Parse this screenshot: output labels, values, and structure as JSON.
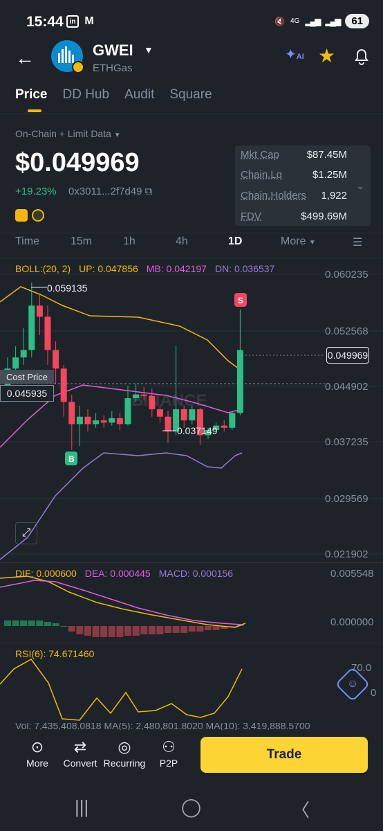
{
  "status_bar": {
    "time": "15:44",
    "net_label": "4G",
    "battery": "61"
  },
  "header": {
    "coin_name": "GWEI",
    "coin_sub": "ETHGas",
    "ai_label": "AI"
  },
  "tabs": [
    "Price",
    "DD Hub",
    "Audit",
    "Square"
  ],
  "source_label": "On-Chain + Limit Data",
  "price": "$0.049969",
  "change": "+19.23%",
  "address": "0x3011...2f7d49",
  "stats": [
    {
      "label": "Mkt Cap",
      "value": "$87.45M"
    },
    {
      "label": "Chain.Lq",
      "value": "$1.25M"
    },
    {
      "label": "Chain.Holders",
      "value": "1,922"
    },
    {
      "label": "FDV",
      "value": "$499.69M"
    }
  ],
  "timeframes": [
    "Time",
    "15m",
    "1h",
    "4h",
    "1D",
    "More"
  ],
  "boll": {
    "label": "BOLL:(20, 2)",
    "up": "UP: 0.047856",
    "mb": "MB: 0.042197",
    "dn": "DN: 0.036537"
  },
  "price_axis": [
    "0.060235",
    "0.052568",
    "0.044902",
    "0.037235",
    "0.029569",
    "0.021902"
  ],
  "current_price_tag": "0.049969",
  "high_label": "0.059135",
  "low_label": "0.037149",
  "cost_price_label": "Cost Price",
  "cost_price_value": "0.045935",
  "watermark": "BINANCE",
  "buy_marker": "B",
  "sell_marker": "S",
  "macd": {
    "dif": "DIF: 0.000600",
    "dea": "DEA: 0.000445",
    "macd": "MACD: 0.000156",
    "axis_top": "0.005548",
    "axis_zero": "0.000000"
  },
  "rsi": {
    "label": "RSI(6): 74.671460",
    "axis_70": "70.0",
    "axis_0": "0"
  },
  "vol_partial": "Vol: 7,435,408.0818    MA(5): 2,480,801.8020    MA(10): 3,419,888.5700",
  "bottom_bar": {
    "more": "More",
    "convert": "Convert",
    "recurring": "Recurring",
    "p2p": "P2P",
    "trade": "Trade"
  },
  "colors": {
    "up": "#2ebd85",
    "down": "#f6465d",
    "accent": "#f0b90b",
    "boll_mb": "#e05ce0",
    "boll_dn": "#9b7ad8"
  },
  "chart_data": {
    "type": "candlestick",
    "candles": [
      [
        0.045,
        0.0475,
        0.0435,
        0.049
      ],
      [
        0.0475,
        0.049,
        0.0465,
        0.0505
      ],
      [
        0.049,
        0.05,
        0.048,
        0.053
      ],
      [
        0.05,
        0.056,
        0.049,
        0.0591
      ],
      [
        0.056,
        0.0545,
        0.052,
        0.0575
      ],
      [
        0.0545,
        0.05,
        0.048,
        0.056
      ],
      [
        0.05,
        0.0475,
        0.0455,
        0.0512
      ],
      [
        0.0475,
        0.043,
        0.041,
        0.048
      ],
      [
        0.043,
        0.04,
        0.0365,
        0.044
      ],
      [
        0.04,
        0.041,
        0.037,
        0.0425
      ],
      [
        0.041,
        0.04,
        0.039,
        0.042
      ],
      [
        0.04,
        0.0405,
        0.0395,
        0.0415
      ],
      [
        0.0405,
        0.0402,
        0.0395,
        0.0412
      ],
      [
        0.0402,
        0.0408,
        0.0398,
        0.0418
      ],
      [
        0.0408,
        0.04,
        0.0392,
        0.0415
      ],
      [
        0.04,
        0.0435,
        0.0398,
        0.0452
      ],
      [
        0.0435,
        0.044,
        0.043,
        0.0455
      ],
      [
        0.044,
        0.0438,
        0.0432,
        0.045
      ],
      [
        0.0438,
        0.042,
        0.041,
        0.0448
      ],
      [
        0.042,
        0.041,
        0.0402,
        0.0425
      ],
      [
        0.041,
        0.039,
        0.0375,
        0.0418
      ],
      [
        0.039,
        0.042,
        0.0385,
        0.0506
      ],
      [
        0.042,
        0.0405,
        0.0395,
        0.0425
      ],
      [
        0.0405,
        0.042,
        0.04,
        0.0425
      ],
      [
        0.042,
        0.0385,
        0.0372,
        0.0422
      ],
      [
        0.0385,
        0.0392,
        0.038,
        0.0395
      ],
      [
        0.0392,
        0.0398,
        0.0388,
        0.0402
      ],
      [
        0.0398,
        0.0395,
        0.039,
        0.0405
      ],
      [
        0.0395,
        0.0415,
        0.0392,
        0.0418
      ],
      [
        0.0415,
        0.05,
        0.0412,
        0.0555
      ]
    ],
    "ylim": [
      0.021902,
      0.060235
    ]
  }
}
